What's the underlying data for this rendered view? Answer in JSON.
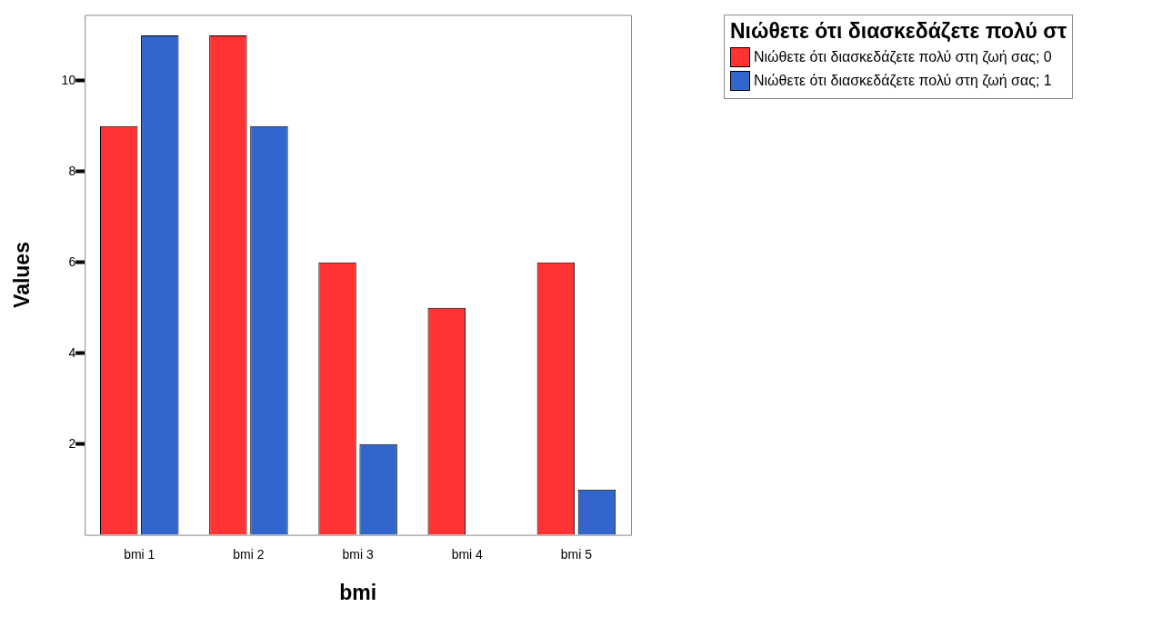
{
  "chart_data": {
    "type": "bar",
    "xlabel": "bmi",
    "ylabel": "Values",
    "legend_title": "Νιώθετε ότι διασκεδάζετε πολύ στ",
    "categories": [
      "bmi 1",
      "bmi 2",
      "bmi 3",
      "bmi 4",
      "bmi 5"
    ],
    "series": [
      {
        "name": "Νιώθετε ότι διασκεδάζετε πολύ στη ζωή σας; 0",
        "color": "#ff3333",
        "values": [
          9,
          11,
          6,
          5,
          6
        ]
      },
      {
        "name": "Νιώθετε ότι διασκεδάζετε πολύ στη ζωή σας; 1",
        "color": "#3366cc",
        "values": [
          11,
          9,
          2,
          null,
          1
        ]
      }
    ],
    "ylim": [
      0,
      11.45
    ],
    "yticks": [
      2,
      4,
      6,
      8,
      10
    ],
    "grid": false,
    "legend": "top right"
  }
}
